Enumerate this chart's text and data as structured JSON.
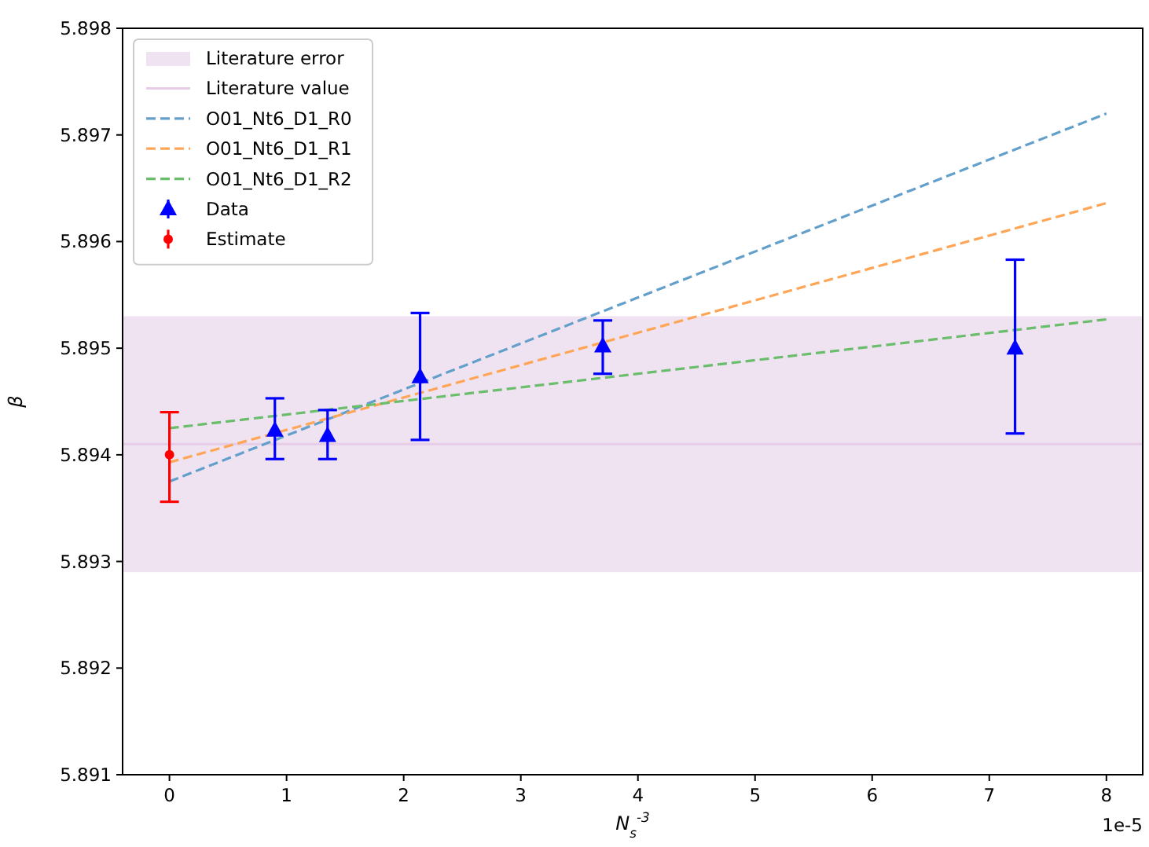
{
  "chart_data": {
    "type": "line",
    "xlabel": "N$_{s}$$^{-3}$",
    "ylabel": "β",
    "annotations": [
      "1e-5"
    ],
    "xlim": [
      -0.4,
      8.31
    ],
    "ylim": [
      5.891,
      5.898
    ],
    "xticks": [
      0,
      1,
      2,
      3,
      4,
      5,
      6,
      7,
      8
    ],
    "yticks": [
      {
        "value": 5.891,
        "label": "5.891"
      },
      {
        "value": 5.892,
        "label": "5.892"
      },
      {
        "value": 5.893,
        "label": "5.893"
      },
      {
        "value": 5.894,
        "label": "5.894"
      },
      {
        "value": 5.895,
        "label": "5.895"
      },
      {
        "value": 5.896,
        "label": "5.896"
      },
      {
        "value": 5.897,
        "label": "5.897"
      },
      {
        "value": 5.898,
        "label": "5.898"
      }
    ],
    "grid": false,
    "legend": "top left",
    "bands": [
      {
        "axis": "y",
        "from": 5.8929,
        "to": 5.8953,
        "label": "Literature error",
        "color": "#efe3f1"
      }
    ],
    "ref_lines": [
      {
        "axis": "y",
        "value": 5.8941,
        "label": "Literature value",
        "color": "#e6cce6"
      }
    ],
    "series": [
      {
        "name": "O01_Nt6_D1_R0",
        "line_style": "dashed",
        "marker": "none",
        "color": "#629fcb",
        "x": [
          0,
          8
        ],
        "values": [
          5.89375,
          5.8972
        ]
      },
      {
        "name": "O01_Nt6_D1_R1",
        "line_style": "dashed",
        "marker": "none",
        "color": "#ffa556",
        "x": [
          0,
          8
        ],
        "values": [
          5.89393,
          5.89636
        ]
      },
      {
        "name": "O01_Nt6_D1_R2",
        "line_style": "dashed",
        "marker": "none",
        "color": "#6abd6a",
        "x": [
          0,
          8
        ],
        "values": [
          5.89425,
          5.89527
        ]
      },
      {
        "name": "Data",
        "type": "scatter",
        "marker": "triangle",
        "color": "#0000ff",
        "x": [
          0.9,
          1.35,
          2.14,
          3.7,
          7.22
        ],
        "values": [
          5.89423,
          5.89418,
          5.89473,
          5.89502,
          5.895
        ],
        "errors": [
          [
            5.89396,
            5.89453
          ],
          [
            5.89396,
            5.89442
          ],
          [
            5.89414,
            5.89533
          ],
          [
            5.89476,
            5.89526
          ],
          [
            5.8942,
            5.89583
          ]
        ]
      },
      {
        "name": "Estimate",
        "type": "scatter",
        "marker": "circle",
        "color": "#ff0000",
        "x": [
          0
        ],
        "values": [
          5.894
        ],
        "errors": [
          [
            5.89356,
            5.8944
          ]
        ]
      }
    ]
  }
}
